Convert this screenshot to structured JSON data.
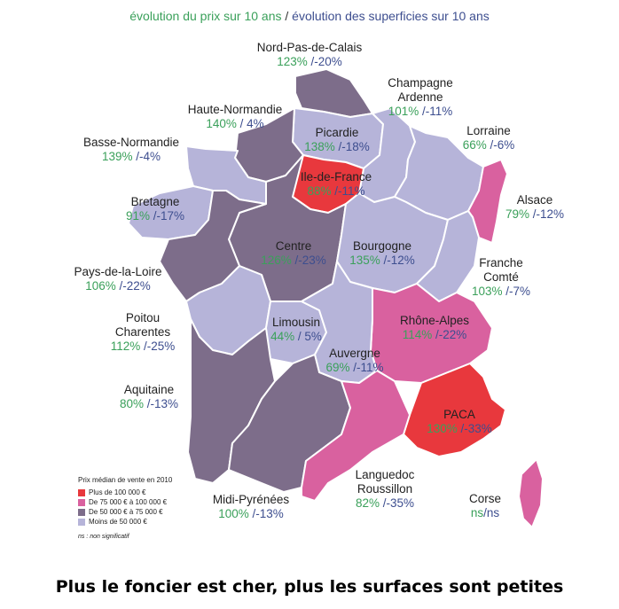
{
  "header": {
    "part1": "évolution du prix sur 10 ans",
    "separator": " / ",
    "part2": "évolution des superficies sur 10 ans"
  },
  "colors": {
    "very_high": "#e8383d",
    "high": "#d9619f",
    "mid": "#7d6d8a",
    "low": "#b6b4d9",
    "green_text": "#3aa05a",
    "blue_text": "#3d4e8f",
    "border": "#ffffff"
  },
  "regions": [
    {
      "id": "nord-pas-de-calais",
      "name": "Nord-Pas-de-Calais",
      "price": "123%",
      "surface": "/-20%",
      "tier": "mid"
    },
    {
      "id": "picardie",
      "name": "Picardie",
      "price": "138%",
      "surface": "/-18%",
      "tier": "low"
    },
    {
      "id": "haute-normandie",
      "name": "Haute-Normandie",
      "price": "140%",
      "surface": "/ 4%",
      "tier": "mid"
    },
    {
      "id": "champagne-ardenne",
      "name": "Champagne Ardenne",
      "price": "101%",
      "surface": "/-11%",
      "tier": "low"
    },
    {
      "id": "lorraine",
      "name": "Lorraine",
      "price": "66%",
      "surface": "/-6%",
      "tier": "low"
    },
    {
      "id": "alsace",
      "name": "Alsace",
      "price": "79%",
      "surface": "/-12%",
      "tier": "high"
    },
    {
      "id": "basse-normandie",
      "name": "Basse-Normandie",
      "price": "139%",
      "surface": "/-4%",
      "tier": "low"
    },
    {
      "id": "ile-de-france",
      "name": "Ile-de-France",
      "price": "88%",
      "surface": "/-11%",
      "tier": "very_high"
    },
    {
      "id": "bretagne",
      "name": "Bretagne",
      "price": "91%",
      "surface": "/-17%",
      "tier": "low"
    },
    {
      "id": "centre",
      "name": "Centre",
      "price": "126%",
      "surface": "/-23%",
      "tier": "mid"
    },
    {
      "id": "bourgogne",
      "name": "Bourgogne",
      "price": "135%",
      "surface": "/-12%",
      "tier": "low"
    },
    {
      "id": "franche-comte",
      "name": "Franche Comté",
      "price": "103%",
      "surface": "/-7%",
      "tier": "low"
    },
    {
      "id": "pays-de-la-loire",
      "name": "Pays-de-la-Loire",
      "price": "106%",
      "surface": "/-22%",
      "tier": "mid"
    },
    {
      "id": "poitou-charentes",
      "name": "Poitou Charentes",
      "price": "112%",
      "surface": "/-25%",
      "tier": "low"
    },
    {
      "id": "limousin",
      "name": "Limousin",
      "price": "44%",
      "surface": "/ 5%",
      "tier": "low"
    },
    {
      "id": "rhone-alpes",
      "name": "Rhône-Alpes",
      "price": "114%",
      "surface": "/-22%",
      "tier": "high"
    },
    {
      "id": "auvergne",
      "name": "Auvergne",
      "price": "69%",
      "surface": "/-11%",
      "tier": "low"
    },
    {
      "id": "aquitaine",
      "name": "Aquitaine",
      "price": "80%",
      "surface": "/-13%",
      "tier": "mid"
    },
    {
      "id": "paca",
      "name": "PACA",
      "price": "130%",
      "surface": "/-33%",
      "tier": "very_high"
    },
    {
      "id": "midi-pyrenees",
      "name": "Midi-Pyrénées",
      "price": "100%",
      "surface": "/-13%",
      "tier": "mid"
    },
    {
      "id": "languedoc-roussillon",
      "name": "Languedoc Roussillon",
      "price": "82%",
      "surface": "/-35%",
      "tier": "high"
    },
    {
      "id": "corse",
      "name": "Corse",
      "price": "ns",
      "surface": "/ns",
      "tier": "high"
    }
  ],
  "legend": {
    "title": "Prix médian de vente en 2010",
    "items": [
      {
        "label": "Plus de 100 000 €",
        "tier": "very_high"
      },
      {
        "label": "De 75 000 € à 100 000 €",
        "tier": "high"
      },
      {
        "label": "De 50 000 € à 75 000 €",
        "tier": "mid"
      },
      {
        "label": "Moins de 50 000 €",
        "tier": "low"
      }
    ],
    "note": "ns : non significatif"
  },
  "footer": "Plus le foncier est cher, plus les surfaces sont petites"
}
